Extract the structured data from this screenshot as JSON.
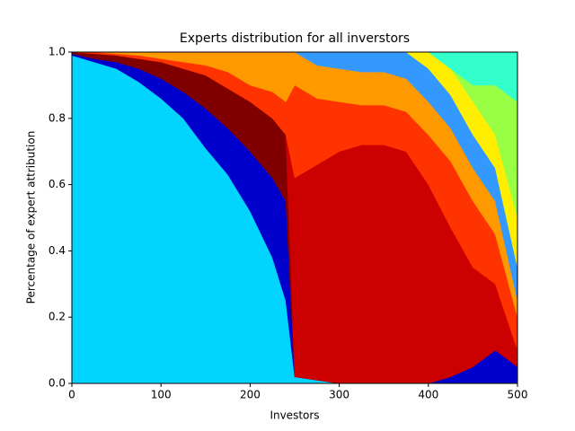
{
  "chart_data": {
    "type": "stacked_area",
    "title": "Experts distribution for all inverstors",
    "xlabel": "Investors",
    "ylabel": "Percentage of expert attribution",
    "x": [
      0,
      25,
      50,
      75,
      100,
      125,
      150,
      175,
      200,
      225,
      240,
      250,
      275,
      300,
      325,
      350,
      375,
      400,
      425,
      450,
      475,
      500
    ],
    "series": [
      {
        "color": "#00d4ff",
        "values": [
          0.99,
          0.97,
          0.95,
          0.91,
          0.86,
          0.8,
          0.71,
          0.63,
          0.52,
          0.38,
          0.25,
          0.02,
          0.01,
          0,
          0,
          0,
          0,
          0,
          0,
          0,
          0,
          0
        ]
      },
      {
        "color": "#0000cc",
        "values": [
          0.005,
          0.01,
          0.02,
          0.04,
          0.06,
          0.08,
          0.12,
          0.14,
          0.18,
          0.24,
          0.3,
          0,
          0,
          0,
          0,
          0,
          0,
          0,
          0.02,
          0.05,
          0.1,
          0.05
        ]
      },
      {
        "color": "#800000",
        "values": [
          0.005,
          0.015,
          0.02,
          0.03,
          0.05,
          0.07,
          0.1,
          0.12,
          0.15,
          0.18,
          0.2,
          0,
          0,
          0,
          0,
          0,
          0,
          0,
          0,
          0,
          0,
          0
        ]
      },
      {
        "color": "#cc0000",
        "values": [
          0,
          0,
          0,
          0,
          0,
          0,
          0,
          0,
          0,
          0,
          0,
          0.6,
          0.65,
          0.7,
          0.72,
          0.72,
          0.7,
          0.6,
          0.45,
          0.3,
          0.2,
          0.05
        ]
      },
      {
        "color": "#ff3300",
        "values": [
          0,
          0.005,
          0.005,
          0.01,
          0.01,
          0.02,
          0.03,
          0.05,
          0.05,
          0.08,
          0.1,
          0.28,
          0.2,
          0.15,
          0.12,
          0.12,
          0.12,
          0.15,
          0.2,
          0.2,
          0.15,
          0.1
        ]
      },
      {
        "color": "#ff9900",
        "values": [
          0,
          0,
          0.005,
          0.01,
          0.02,
          0.03,
          0.04,
          0.06,
          0.1,
          0.12,
          0.15,
          0.1,
          0.1,
          0.1,
          0.1,
          0.1,
          0.1,
          0.1,
          0.1,
          0.1,
          0.1,
          0.05
        ]
      },
      {
        "color": "#3399ff",
        "values": [
          0,
          0,
          0,
          0,
          0,
          0,
          0,
          0,
          0,
          0,
          0,
          0,
          0.04,
          0.05,
          0.06,
          0.06,
          0.08,
          0.1,
          0.1,
          0.1,
          0.1,
          0.1
        ]
      },
      {
        "color": "#ffee00",
        "values": [
          0,
          0,
          0,
          0,
          0,
          0,
          0,
          0,
          0,
          0,
          0,
          0,
          0,
          0,
          0,
          0,
          0,
          0.05,
          0.08,
          0.1,
          0.1,
          0.15
        ]
      },
      {
        "color": "#99ff44",
        "values": [
          0,
          0,
          0,
          0,
          0,
          0,
          0,
          0,
          0,
          0,
          0,
          0,
          0,
          0,
          0,
          0,
          0,
          0,
          0,
          0.05,
          0.15,
          0.35
        ]
      },
      {
        "color": "#33ffcc",
        "values": [
          0,
          0,
          0,
          0,
          0,
          0,
          0,
          0,
          0,
          0,
          0,
          0,
          0,
          0,
          0,
          0,
          0,
          0,
          0.05,
          0.1,
          0.1,
          0.15
        ]
      }
    ],
    "xlim": [
      0,
      500
    ],
    "xticks": [
      0,
      100,
      200,
      300,
      400,
      500
    ],
    "ylim": [
      0,
      1
    ],
    "yticks": [
      {
        "value": 0,
        "label": "0.0"
      },
      0.2,
      0.4,
      0.6,
      0.8,
      {
        "value": 1,
        "label": "1.0"
      }
    ]
  }
}
